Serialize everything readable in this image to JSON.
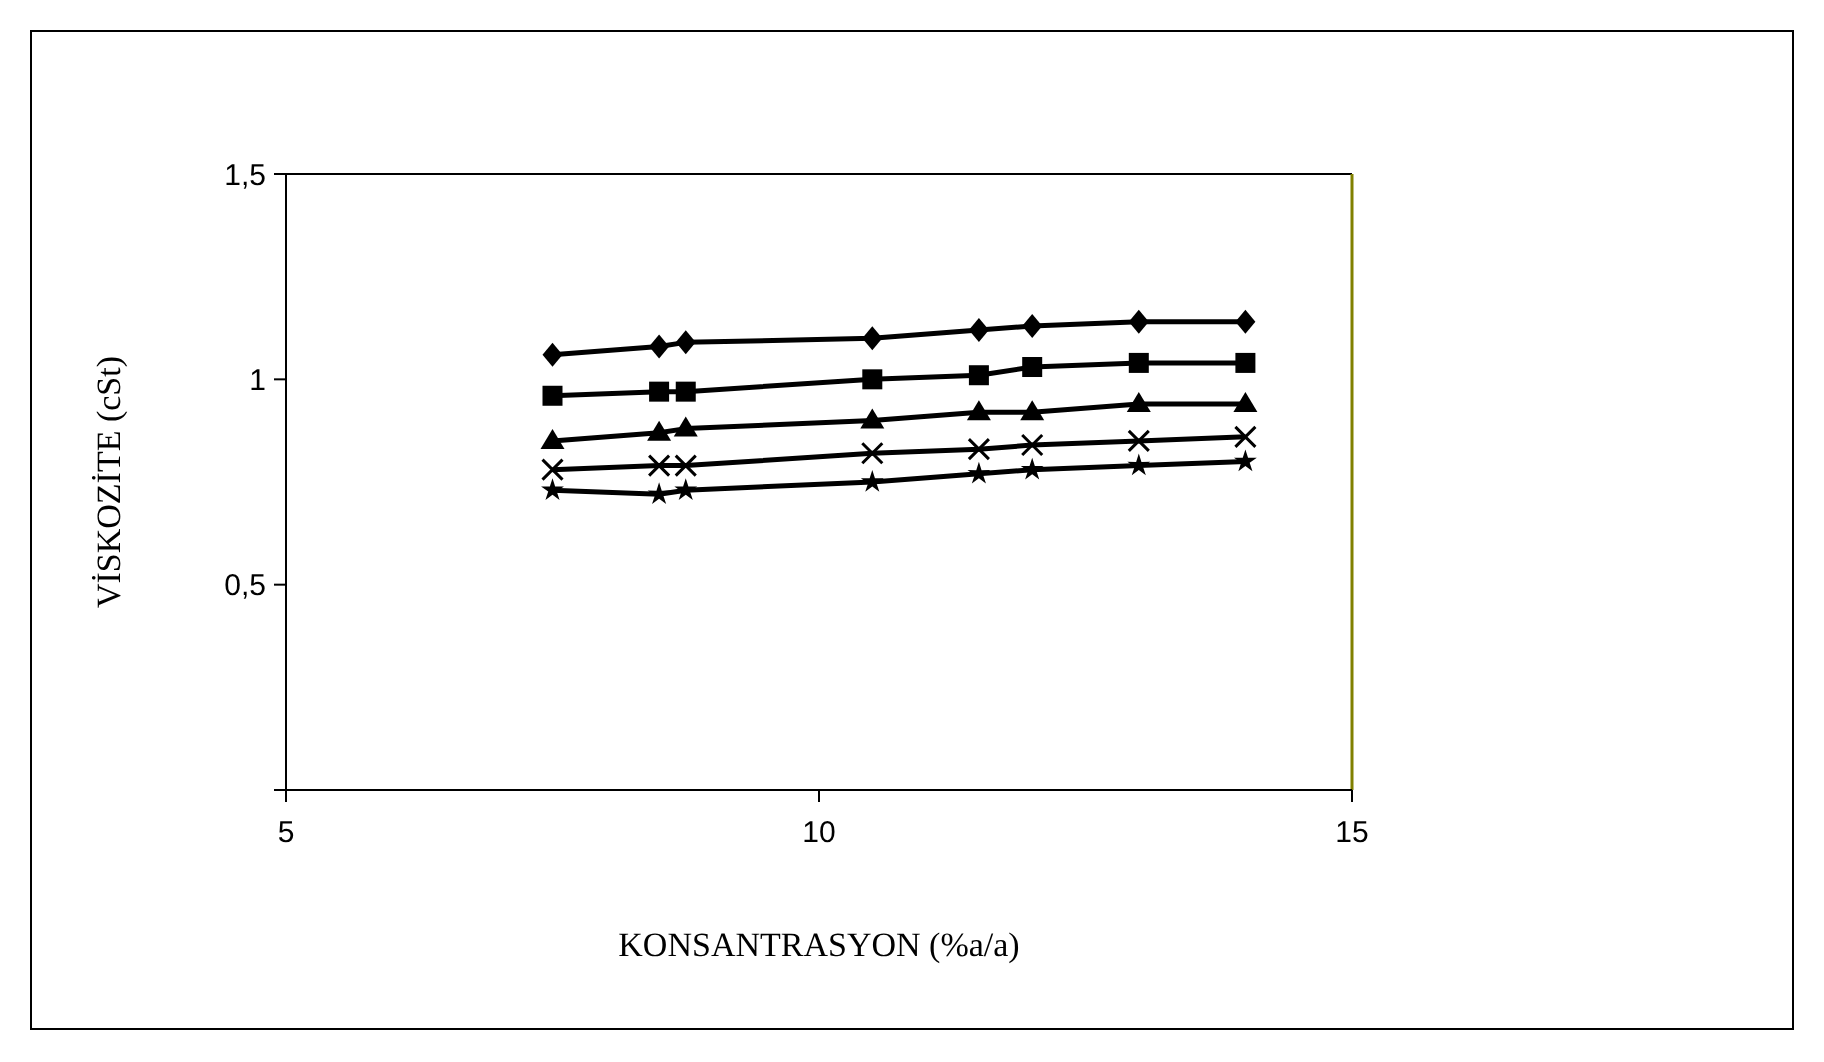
{
  "chart_data": {
    "type": "line",
    "xlabel": "KONSANTRASYON (%a/a)",
    "ylabel": "VİSKOZİTE (cSt)",
    "x": [
      7.5,
      8.5,
      8.75,
      10.5,
      11.5,
      12,
      13,
      14
    ],
    "series": [
      {
        "color": "#000000",
        "marker": "diamond",
        "values": [
          1.06,
          1.08,
          1.09,
          1.1,
          1.12,
          1.13,
          1.14,
          1.14
        ]
      },
      {
        "color": "#000000",
        "marker": "square",
        "values": [
          0.96,
          0.97,
          0.97,
          1.0,
          1.01,
          1.03,
          1.04,
          1.04
        ]
      },
      {
        "color": "#000000",
        "marker": "triangle",
        "values": [
          0.85,
          0.87,
          0.88,
          0.9,
          0.92,
          0.92,
          0.94,
          0.94
        ]
      },
      {
        "color": "#000000",
        "marker": "cross",
        "values": [
          0.78,
          0.79,
          0.79,
          0.82,
          0.83,
          0.84,
          0.85,
          0.86
        ]
      },
      {
        "color": "#000000",
        "marker": "star",
        "values": [
          0.73,
          0.72,
          0.73,
          0.75,
          0.77,
          0.78,
          0.79,
          0.8
        ]
      }
    ],
    "xlim": [
      5,
      15
    ],
    "xticks": [
      5,
      10,
      15
    ],
    "ylim": [
      0,
      1.5
    ],
    "yticks": [
      {
        "value": 0,
        "label": null
      },
      {
        "value": 0.5,
        "label": "0,5"
      },
      {
        "value": 1,
        "label": "1"
      },
      {
        "value": 1.5,
        "label": "1,5"
      }
    ],
    "grid": false,
    "line_style": "solid"
  }
}
